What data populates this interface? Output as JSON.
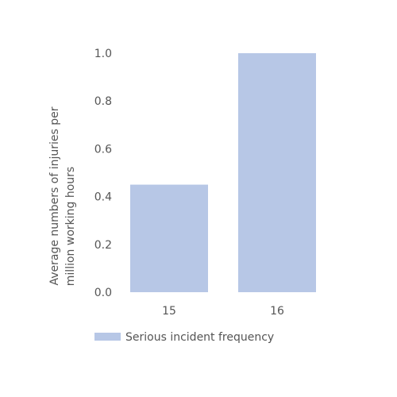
{
  "chart_data": {
    "type": "bar",
    "categories": [
      "15",
      "16"
    ],
    "series": [
      {
        "name": "Serious incident frequency",
        "values": [
          0.45,
          1.0
        ],
        "color": "#b7c7e6"
      }
    ],
    "ylabel_lines": [
      "Average numbers of injuries per",
      "million working hours"
    ],
    "ylim": [
      0,
      1.0
    ],
    "yticks": [
      "0.0",
      "0.2",
      "0.4",
      "0.6",
      "0.8",
      "1.0"
    ],
    "grid": false,
    "legend_position": "bottom-left"
  }
}
